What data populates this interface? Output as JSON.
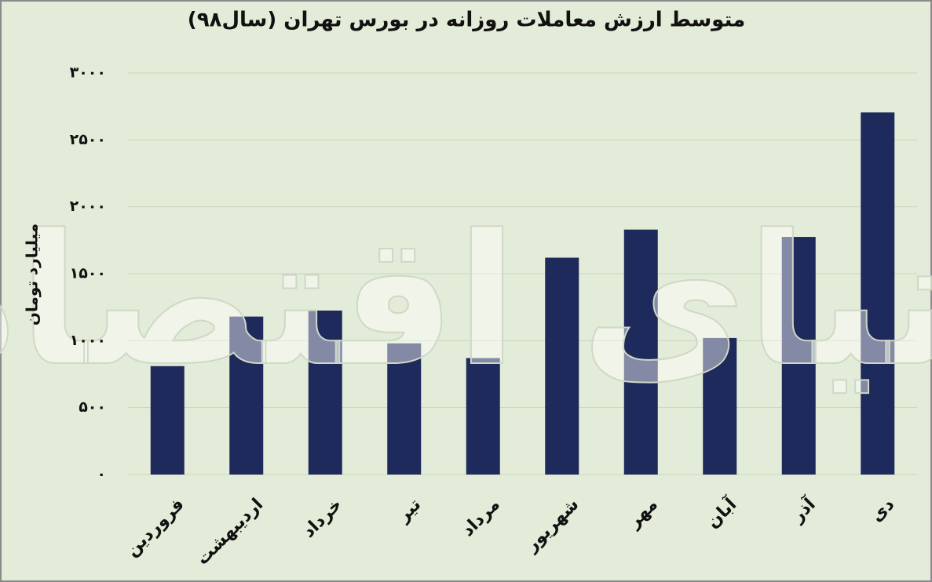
{
  "chart_data": {
    "type": "bar",
    "title": "متوسط ارزش معاملات روزانه در بورس تهران (سال۹۸)",
    "y_label": "میلیارد تومان",
    "watermark": "دنیای اقتصاد",
    "categories": [
      "فروردین",
      "اردیبهشت",
      "خرداد",
      "تیر",
      "مرداد",
      "شهریور",
      "مهر",
      "آبان",
      "آذر",
      "دی"
    ],
    "values": [
      810,
      1180,
      1225,
      980,
      870,
      1620,
      1830,
      1020,
      1775,
      2705
    ],
    "color": "#1f2a5c",
    "ylim": [
      0,
      3000
    ],
    "yticks": [
      {
        "value": 0,
        "label": "۰"
      },
      {
        "value": 500,
        "label": "۵۰۰"
      },
      {
        "value": 1000,
        "label": "۱۰۰۰"
      },
      {
        "value": 1500,
        "label": "۱۵۰۰"
      },
      {
        "value": 2000,
        "label": "۲۰۰۰"
      },
      {
        "value": 2500,
        "label": "۲۵۰۰"
      },
      {
        "value": 3000,
        "label": "۳۰۰۰"
      }
    ],
    "grid": true
  }
}
